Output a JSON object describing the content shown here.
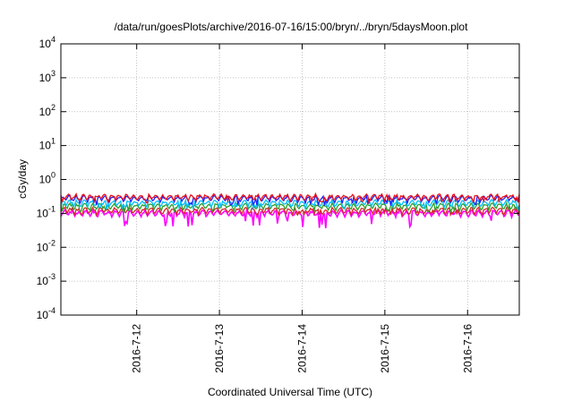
{
  "chart_data": {
    "type": "line",
    "title": "/data/run/goesPlots/archive/2016-07-16/15:00/bryn/../bryn/5daysMoon.plot",
    "xlabel": "Coordinated Universal Time (UTC)",
    "ylabel": "cGy/day",
    "y_scale": "log",
    "ylim": [
      0.0001,
      10000
    ],
    "xlim": [
      "2016-07-11 02:00",
      "2016-07-16 15:00"
    ],
    "grid": true,
    "legend": "none",
    "x_ticks": [
      {
        "label": "2016-7-12",
        "at": "2016-07-12 00:00"
      },
      {
        "label": "2016-7-13",
        "at": "2016-07-13 00:00"
      },
      {
        "label": "2016-7-14",
        "at": "2016-07-14 00:00"
      },
      {
        "label": "2016-7-15",
        "at": "2016-07-15 00:00"
      },
      {
        "label": "2016-7-16",
        "at": "2016-07-16 00:00"
      }
    ],
    "y_ticks": [
      {
        "base": "10",
        "exp": "-4",
        "value": 0.0001
      },
      {
        "base": "10",
        "exp": "-3",
        "value": 0.001
      },
      {
        "base": "10",
        "exp": "-2",
        "value": 0.01
      },
      {
        "base": "10",
        "exp": "-1",
        "value": 0.1
      },
      {
        "base": "10",
        "exp": "0",
        "value": 1
      },
      {
        "base": "10",
        "exp": "1",
        "value": 10
      },
      {
        "base": "10",
        "exp": "2",
        "value": 100
      },
      {
        "base": "10",
        "exp": "3",
        "value": 1000
      },
      {
        "base": "10",
        "exp": "4",
        "value": 10000
      }
    ],
    "series": [
      {
        "color": "#ff00ff",
        "y_typical": 0.1,
        "y_low": 0.035
      },
      {
        "color": "#d62728",
        "y_typical": 0.12,
        "y_low": 0.09
      },
      {
        "color": "#2ca02c",
        "y_typical": 0.16,
        "y_low": 0.11
      },
      {
        "color": "#00bfff",
        "y_typical": 0.2,
        "y_low": 0.13
      },
      {
        "color": "#1f1fff",
        "y_typical": 0.27,
        "y_low": 0.17
      },
      {
        "color": "#e8101c",
        "y_typical": 0.3,
        "y_low": 0.2
      }
    ]
  }
}
